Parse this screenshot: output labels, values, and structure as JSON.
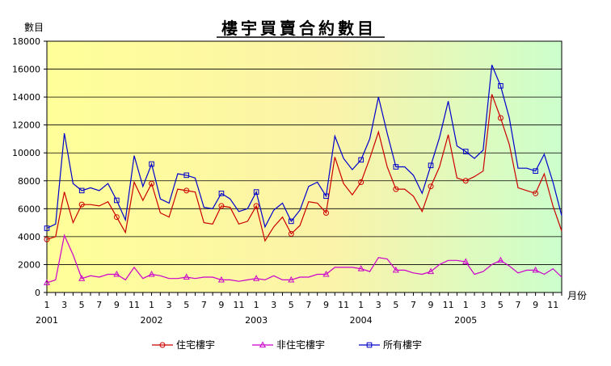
{
  "chart_data": {
    "type": "line",
    "title": "樓宇買賣合約數目",
    "ylabel": "數目",
    "xlabel": "月份",
    "ylim": [
      0,
      18000
    ],
    "yticks": [
      0,
      2000,
      4000,
      6000,
      8000,
      10000,
      12000,
      14000,
      16000,
      18000
    ],
    "xtick_labels": [
      "1",
      "3",
      "5",
      "7",
      "9",
      "11",
      "1",
      "3",
      "5",
      "7",
      "9",
      "11",
      "1",
      "3",
      "5",
      "7",
      "9",
      "11",
      "1",
      "3",
      "5",
      "7",
      "9",
      "11",
      "1",
      "3",
      "5",
      "7",
      "9",
      "11"
    ],
    "year_labels": [
      "2001",
      "2002",
      "2003",
      "2004",
      "2005"
    ],
    "legend_position": "bottom",
    "grid": "horizontal",
    "x": [
      "2001-01",
      "2001-02",
      "2001-03",
      "2001-04",
      "2001-05",
      "2001-06",
      "2001-07",
      "2001-08",
      "2001-09",
      "2001-10",
      "2001-11",
      "2001-12",
      "2002-01",
      "2002-02",
      "2002-03",
      "2002-04",
      "2002-05",
      "2002-06",
      "2002-07",
      "2002-08",
      "2002-09",
      "2002-10",
      "2002-11",
      "2002-12",
      "2003-01",
      "2003-02",
      "2003-03",
      "2003-04",
      "2003-05",
      "2003-06",
      "2003-07",
      "2003-08",
      "2003-09",
      "2003-10",
      "2003-11",
      "2003-12",
      "2004-01",
      "2004-02",
      "2004-03",
      "2004-04",
      "2004-05",
      "2004-06",
      "2004-07",
      "2004-08",
      "2004-09",
      "2004-10",
      "2004-11",
      "2004-12",
      "2005-01",
      "2005-02",
      "2005-03",
      "2005-04",
      "2005-05",
      "2005-06",
      "2005-07",
      "2005-08",
      "2005-09",
      "2005-10",
      "2005-11",
      "2005-12"
    ],
    "series": [
      {
        "name": "住宅樓宇",
        "color": "#cc0000",
        "marker": "circle",
        "values": [
          3800,
          4000,
          7200,
          5000,
          6300,
          6300,
          6200,
          6500,
          5400,
          4300,
          7900,
          6600,
          7800,
          5700,
          5400,
          7400,
          7300,
          7200,
          5000,
          4900,
          6200,
          6100,
          4900,
          5100,
          6200,
          3700,
          4700,
          5400,
          4200,
          4800,
          6500,
          6400,
          5700,
          9700,
          7800,
          7000,
          7900,
          9600,
          11500,
          9000,
          7400,
          7400,
          6900,
          5800,
          7600,
          9000,
          11300,
          8200,
          8000,
          8300,
          8700,
          14200,
          12500,
          10600,
          7500,
          7300,
          7100,
          8500,
          6200,
          4400
        ]
      },
      {
        "name": "非住宅樓宇",
        "color": "#cc00cc",
        "marker": "triangle",
        "values": [
          700,
          900,
          4100,
          2700,
          1000,
          1200,
          1100,
          1300,
          1300,
          900,
          1800,
          1000,
          1300,
          1200,
          1000,
          1000,
          1100,
          1000,
          1100,
          1100,
          900,
          900,
          800,
          900,
          1000,
          900,
          1200,
          900,
          900,
          1100,
          1100,
          1300,
          1300,
          1800,
          1800,
          1800,
          1700,
          1500,
          2500,
          2400,
          1600,
          1600,
          1400,
          1300,
          1500,
          2000,
          2300,
          2300,
          2200,
          1300,
          1500,
          2000,
          2300,
          1900,
          1400,
          1600,
          1600,
          1300,
          1700,
          1100
        ]
      },
      {
        "name": "所有樓宇",
        "color": "#0000cc",
        "marker": "square",
        "values": [
          4600,
          4900,
          11400,
          7800,
          7300,
          7500,
          7300,
          7800,
          6600,
          5200,
          9800,
          7600,
          9200,
          6700,
          6400,
          8500,
          8400,
          8200,
          6100,
          6000,
          7100,
          6700,
          5800,
          6000,
          7200,
          4700,
          5900,
          6400,
          5100,
          5900,
          7600,
          7900,
          6900,
          11200,
          9600,
          8800,
          9500,
          11000,
          14000,
          11400,
          9000,
          9000,
          8400,
          7100,
          9100,
          11100,
          13700,
          10500,
          10100,
          9600,
          10200,
          16300,
          14800,
          12500,
          8900,
          8900,
          8700,
          9900,
          7900,
          5500
        ]
      }
    ]
  }
}
